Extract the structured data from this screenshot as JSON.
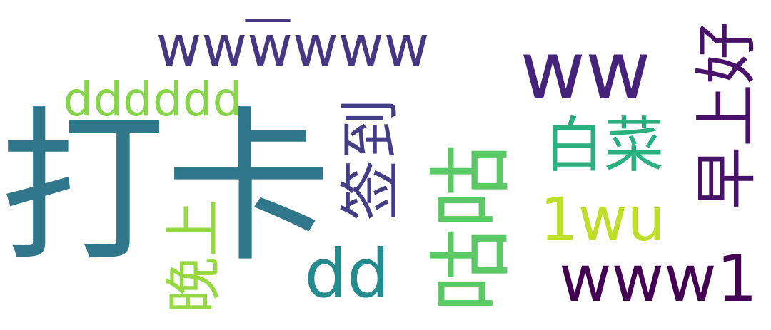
{
  "words": [
    {
      "id": "daka",
      "text": "打卡",
      "color": "#31778c"
    },
    {
      "id": "wwwwww",
      "text": "wwwwww",
      "color": "#453781"
    },
    {
      "id": "wwbar",
      "text": "—",
      "color": "#453781"
    },
    {
      "id": "ww",
      "text": "ww",
      "color": "#46237a"
    },
    {
      "id": "zaoshang",
      "text": "早上好",
      "color": "#48116a"
    },
    {
      "id": "dddddd",
      "text": "dddddd",
      "color": "#86d549"
    },
    {
      "id": "qiandao",
      "text": "签到",
      "color": "#433e85"
    },
    {
      "id": "baicai",
      "text": "白菜",
      "color": "#2ab07f"
    },
    {
      "id": "1wu",
      "text": "1wu",
      "color": "#bddf26"
    },
    {
      "id": "gugu",
      "text": "咕咕",
      "color": "#5ac864"
    },
    {
      "id": "wanshang",
      "text": "晚上",
      "color": "#95d840"
    },
    {
      "id": "dd",
      "text": "dd",
      "color": "#238a8d"
    },
    {
      "id": "www1",
      "text": "www1",
      "color": "#440154"
    }
  ]
}
